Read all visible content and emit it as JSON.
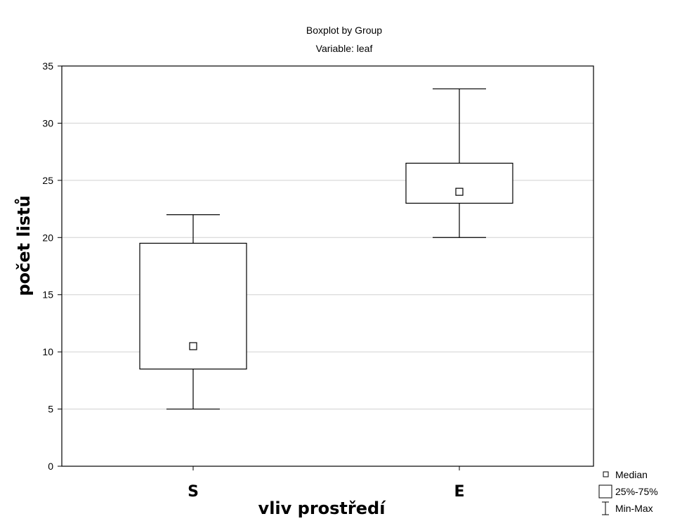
{
  "chart_data": {
    "type": "boxplot",
    "title": "Boxplot by Group",
    "subtitle": "Variable: leaf",
    "xlabel": "vliv prostředí",
    "ylabel": "počet listů",
    "ylim": [
      0,
      35
    ],
    "yticks": [
      0,
      5,
      10,
      15,
      20,
      25,
      30,
      35
    ],
    "grid": true,
    "legend_position": "bottom-right",
    "categories": [
      "S",
      "E"
    ],
    "boxes": [
      {
        "category": "S",
        "min": 5,
        "q1": 8.5,
        "median": 10.5,
        "q3": 19.5,
        "max": 22
      },
      {
        "category": "E",
        "min": 20,
        "q1": 23,
        "median": 24,
        "q3": 26.5,
        "max": 33
      }
    ],
    "legend": [
      {
        "symbol": "median",
        "label": "Median"
      },
      {
        "symbol": "box",
        "label": "25%-75%"
      },
      {
        "symbol": "whisker",
        "label": "Min-Max"
      }
    ]
  }
}
